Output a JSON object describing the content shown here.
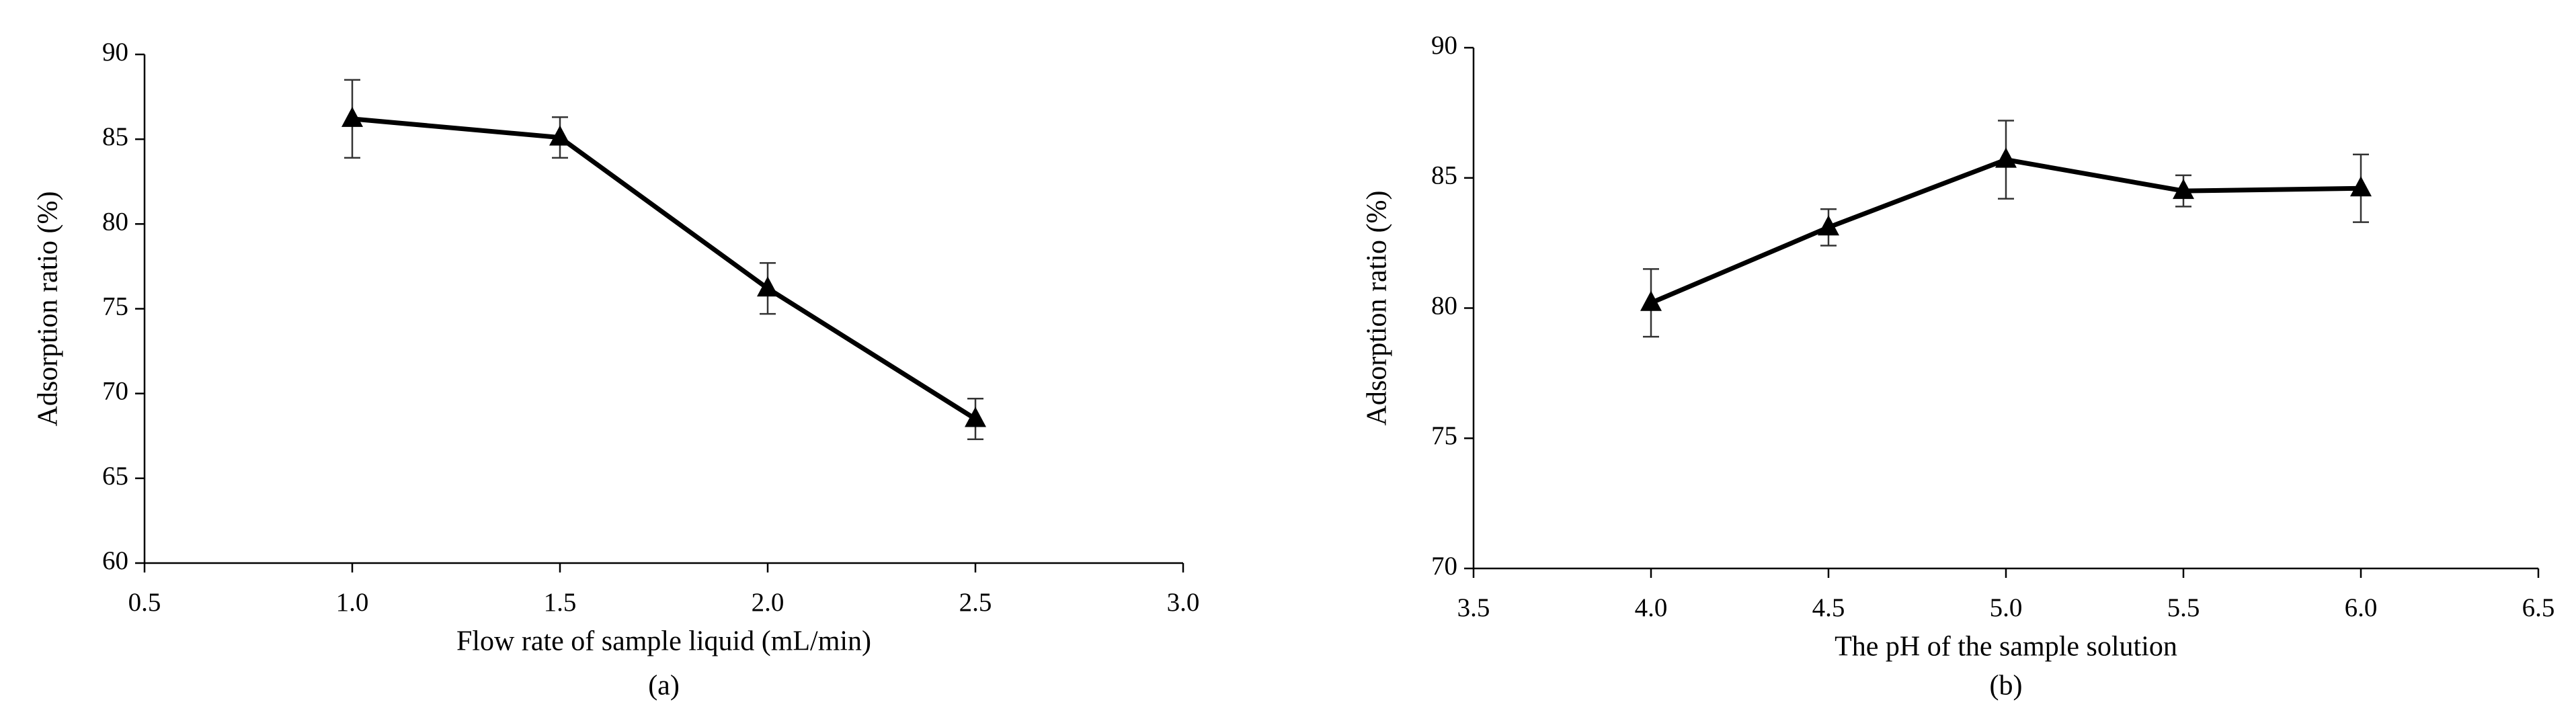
{
  "chart_data": [
    {
      "type": "line",
      "caption": "(a)",
      "x_label": "Flow rate of sample liquid (mL/min)",
      "y_label": "Adsorption ratio (%)",
      "x": [
        1.0,
        1.5,
        2.0,
        2.5
      ],
      "values": [
        86.2,
        85.1,
        76.2,
        68.5
      ],
      "errors": [
        2.3,
        1.2,
        1.5,
        1.2
      ],
      "color": "#000000",
      "xlim": [
        0.5,
        3.0
      ],
      "xticks": [
        0.5,
        {
          "value": 1,
          "label": "1.0"
        },
        1.5,
        {
          "value": 2,
          "label": "2.0"
        },
        2.5,
        {
          "value": 3,
          "label": "3.0"
        }
      ],
      "ylim": [
        60,
        90
      ],
      "yticks": [
        60,
        65,
        70,
        75,
        80,
        85,
        90
      ]
    },
    {
      "type": "line",
      "caption": "(b)",
      "x_label": "The pH of the sample solution",
      "y_label": "Adsorption ratio (%)",
      "x": [
        4.0,
        4.5,
        5.0,
        5.5,
        6.0
      ],
      "values": [
        80.2,
        83.1,
        85.7,
        84.5,
        84.6
      ],
      "errors": [
        1.3,
        0.7,
        1.5,
        0.6,
        1.3
      ],
      "color": "#000000",
      "xlim": [
        3.5,
        6.5
      ],
      "xticks": [
        3.5,
        {
          "value": 4,
          "label": "4.0"
        },
        4.5,
        {
          "value": 5,
          "label": "5.0"
        },
        5.5,
        {
          "value": 6,
          "label": "6.0"
        },
        6.5
      ],
      "ylim": [
        70,
        90
      ],
      "yticks": [
        70,
        75,
        80,
        85,
        90
      ]
    }
  ]
}
